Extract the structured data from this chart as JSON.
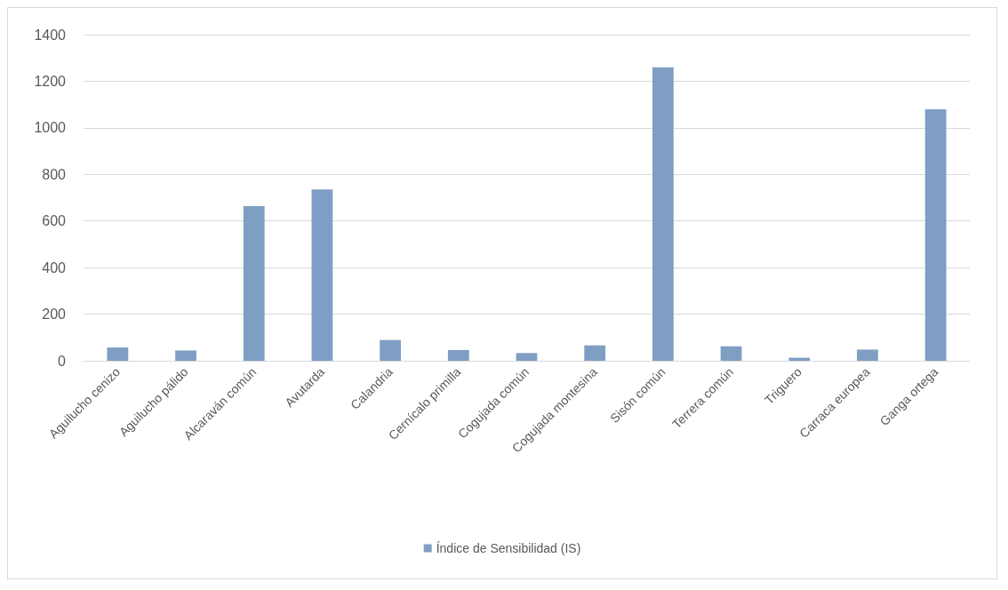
{
  "chart_data": {
    "type": "bar",
    "categories": [
      "Aguilucho cenizo",
      "Aguilucho pálido",
      "Alcaraván común",
      "Avutarda",
      "Calandria",
      "Cernícalo primilla",
      "Cogujada común",
      "Cogujada montesina",
      "Sisón común",
      "Terrera común",
      "Triguero",
      "Carraca europea",
      "Ganga ortega"
    ],
    "series": [
      {
        "name": "Índice de Sensibilidad (IS)",
        "color": "#7f9ec4",
        "values": [
          57,
          44,
          664,
          735,
          89,
          46,
          33,
          66,
          1260,
          62,
          13,
          48,
          1080
        ]
      }
    ],
    "ylim": [
      0,
      1400
    ],
    "yticks": [
      0,
      200,
      400,
      600,
      800,
      1000,
      1200,
      1400
    ],
    "grid": "y",
    "legend": "bottom"
  }
}
